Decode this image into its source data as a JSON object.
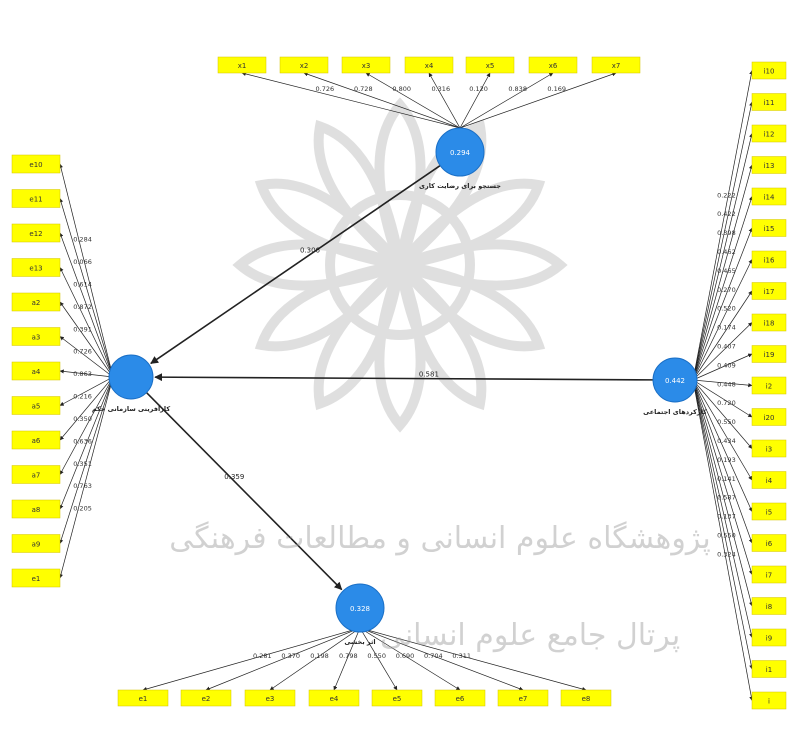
{
  "diagram": {
    "latents": {
      "top": {
        "r2": "0.294",
        "label": "جستجو برای رضایت کاری"
      },
      "left": {
        "r2": "",
        "label": "کارآفرینی سازمانی حکم"
      },
      "right": {
        "r2": "0.442",
        "label": "کارکردهای اجتماعی"
      },
      "bottom": {
        "r2": "0.328",
        "label": "اثر بخشی"
      }
    },
    "paths": [
      {
        "from": "top",
        "to": "left",
        "coef": "0.306"
      },
      {
        "from": "right",
        "to": "left",
        "coef": "0.581"
      },
      {
        "from": "left",
        "to": "bottom",
        "coef": "0.359"
      }
    ],
    "indicators": {
      "top": [
        {
          "label": "x1",
          "loading": "0.726"
        },
        {
          "label": "x2",
          "loading": "0.728"
        },
        {
          "label": "x3",
          "loading": "0.800"
        },
        {
          "label": "x4",
          "loading": "0.316"
        },
        {
          "label": "x5",
          "loading": "0.120"
        },
        {
          "label": "x6",
          "loading": "0.838"
        },
        {
          "label": "x7",
          "loading": "0.169"
        }
      ],
      "left": [
        {
          "label": "e10",
          "loading": "0.284"
        },
        {
          "label": "e11",
          "loading": "0.066"
        },
        {
          "label": "e12",
          "loading": "0.614"
        },
        {
          "label": "e13",
          "loading": "0.872"
        },
        {
          "label": "a2",
          "loading": "0.391"
        },
        {
          "label": "a3",
          "loading": "0.726"
        },
        {
          "label": "a4",
          "loading": "0.863"
        },
        {
          "label": "a5",
          "loading": "0.216"
        },
        {
          "label": "a6",
          "loading": "0.350"
        },
        {
          "label": "a7",
          "loading": "0.636"
        },
        {
          "label": "a8",
          "loading": "0.351"
        },
        {
          "label": "a9",
          "loading": "0.763"
        },
        {
          "label": "e1",
          "loading": "0.205"
        }
      ],
      "right": [
        {
          "label": "i10",
          "loading": "0.222"
        },
        {
          "label": "i11",
          "loading": "0.422"
        },
        {
          "label": "i12",
          "loading": "0.398"
        },
        {
          "label": "i13",
          "loading": "0.462"
        },
        {
          "label": "i14",
          "loading": "0.465"
        },
        {
          "label": "i15",
          "loading": "0.270"
        },
        {
          "label": "i16",
          "loading": "0.520"
        },
        {
          "label": "i17",
          "loading": "0.174"
        },
        {
          "label": "i18",
          "loading": "0.407"
        },
        {
          "label": "i19",
          "loading": "0.409"
        },
        {
          "label": "i2",
          "loading": "0.448"
        },
        {
          "label": "i20",
          "loading": "0.720"
        },
        {
          "label": "i3",
          "loading": "0.550"
        },
        {
          "label": "i4",
          "loading": "0.434"
        },
        {
          "label": "i5",
          "loading": "0.193"
        },
        {
          "label": "i6",
          "loading": "0.141"
        },
        {
          "label": "i7",
          "loading": "0.587"
        },
        {
          "label": "i8",
          "loading": "0.137"
        },
        {
          "label": "i9",
          "loading": "0.550"
        },
        {
          "label": "i1",
          "loading": "0.324"
        },
        {
          "label": "i",
          "loading": ""
        }
      ],
      "bottom": [
        {
          "label": "e1",
          "loading": "0.281"
        },
        {
          "label": "e2",
          "loading": "0.370"
        },
        {
          "label": "e3",
          "loading": "0.198"
        },
        {
          "label": "e4",
          "loading": "0.798"
        },
        {
          "label": "e5",
          "loading": "0.550"
        },
        {
          "label": "e6",
          "loading": "0.690"
        },
        {
          "label": "e7",
          "loading": "0.704"
        },
        {
          "label": "e8",
          "loading": "0.311"
        }
      ]
    },
    "colors": {
      "indicator_fill": "#ffff00",
      "latent_fill": "#2b8be8",
      "line": "#222222"
    }
  },
  "watermark": {
    "line1": "پژوهشگاه علوم انسانی و مطالعات فرهنگی",
    "line2": "پرتال جامع علوم انسانی"
  }
}
